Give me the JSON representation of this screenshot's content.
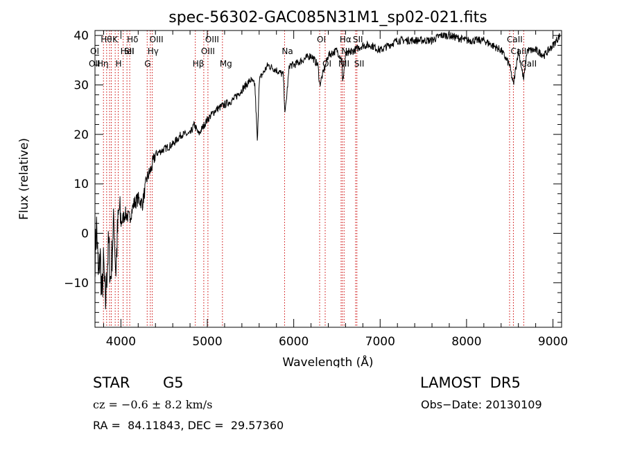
{
  "chart_data": {
    "type": "line",
    "title": "spec-56302-GAC085N31M1_sp02-021.fits",
    "xlabel": "Wavelength (Å)",
    "ylabel": "Flux (relative)",
    "xlim": [
      3700,
      9100
    ],
    "ylim": [
      -19,
      41
    ],
    "xticks": [
      4000,
      5000,
      6000,
      7000,
      8000,
      9000
    ],
    "yticks": [
      -10,
      0,
      10,
      20,
      30,
      40
    ],
    "grid": false,
    "series": [
      {
        "x": [
          3700,
          3720,
          3740,
          3760,
          3780,
          3800,
          3820,
          3840,
          3860,
          3880,
          3900,
          3920,
          3940,
          3960,
          3980,
          4000,
          4050,
          4100,
          4150,
          4200,
          4250,
          4300,
          4350,
          4400,
          4500,
          4600,
          4700,
          4800,
          4850,
          4900,
          5000,
          5100,
          5200,
          5300,
          5400,
          5500,
          5550,
          5580,
          5600,
          5700,
          5800,
          5880,
          5900,
          5950,
          6000,
          6100,
          6200,
          6280,
          6300,
          6400,
          6500,
          6560,
          6563,
          6600,
          6700,
          6800,
          6900,
          7000,
          7200,
          7400,
          7600,
          7700,
          7800,
          8000,
          8200,
          8400,
          8498,
          8542,
          8600,
          8662,
          8700,
          8800,
          8900,
          9000,
          9080
        ],
        "y": [
          -5,
          2,
          -10,
          -4,
          -13,
          -6,
          -15,
          -7,
          -2,
          -10,
          -3,
          3,
          -8,
          0,
          5,
          2,
          4,
          3,
          6,
          7,
          6,
          11,
          13,
          16,
          17,
          18,
          20,
          20,
          22,
          20,
          23,
          25,
          26,
          27,
          29,
          31,
          30,
          18,
          31,
          34,
          33,
          32,
          24,
          34,
          34,
          35,
          36,
          34,
          30,
          36,
          37,
          35,
          30,
          36,
          37,
          38,
          38,
          37,
          39,
          39,
          39,
          40,
          40,
          39,
          39,
          37,
          34,
          30,
          37,
          31,
          37,
          37,
          36,
          38,
          40
        ]
      }
    ],
    "line_markers": [
      {
        "w": 3798,
        "labels": [
          "Hθ"
        ],
        "row": 0
      },
      {
        "w": 3835,
        "labels": [],
        "row": 0
      },
      {
        "w": 3869,
        "labels": [],
        "row": 0
      },
      {
        "w": 3889,
        "labels": [],
        "row": 0
      },
      {
        "w": 3934,
        "labels": [
          "K"
        ],
        "row": 0
      },
      {
        "w": 3969,
        "labels": [
          "H"
        ],
        "row": 2
      },
      {
        "w": 4026,
        "labels": [
          "HeI"
        ],
        "row": 1
      },
      {
        "w": 4070,
        "labels": [
          "SII"
        ],
        "row": 1
      },
      {
        "w": 4102,
        "labels": [
          "Hδ"
        ],
        "row": 0
      },
      {
        "w": 4304,
        "labels": [
          "G"
        ],
        "row": 2
      },
      {
        "w": 4340,
        "labels": [
          "Hγ"
        ],
        "row": 1
      },
      {
        "w": 4363,
        "labels": [
          "OIII"
        ],
        "row": 0
      },
      {
        "w": 4861,
        "labels": [
          "Hβ"
        ],
        "row": 2
      },
      {
        "w": 4959,
        "labels": [
          "OIII"
        ],
        "row": 1
      },
      {
        "w": 5007,
        "labels": [
          "OIII"
        ],
        "row": 0
      },
      {
        "w": 5175,
        "labels": [
          "Mg"
        ],
        "row": 2
      },
      {
        "w": 5894,
        "labels": [
          "Na"
        ],
        "row": 1
      },
      {
        "w": 6300,
        "labels": [
          "OI"
        ],
        "row": 0
      },
      {
        "w": 6364,
        "labels": [
          "OI"
        ],
        "row": 2
      },
      {
        "w": 6548,
        "labels": [
          "NII"
        ],
        "row": 2
      },
      {
        "w": 6563,
        "labels": [
          "Hα"
        ],
        "row": 0
      },
      {
        "w": 6583,
        "labels": [
          "NII"
        ],
        "row": 1
      },
      {
        "w": 6716,
        "labels": [
          "SII"
        ],
        "row": 0
      },
      {
        "w": 6731,
        "labels": [
          "SII"
        ],
        "row": 2
      },
      {
        "w": 8498,
        "labels": [
          "CaII"
        ],
        "row": 0
      },
      {
        "w": 8542,
        "labels": [
          "CaII"
        ],
        "row": 1
      },
      {
        "w": 8662,
        "labels": [
          "CaII"
        ],
        "row": 2
      }
    ],
    "left_stack_labels": [
      {
        "text": "OI",
        "row": 1
      },
      {
        "text": "OII",
        "row": 2
      },
      {
        "text": "Hη",
        "row": 2
      }
    ]
  },
  "info": {
    "object_class": "STAR",
    "subclass": "G5",
    "survey": "LAMOST  DR5",
    "redshift_line": "cz = −0.6 ± 8.2 km/s",
    "obs_date": "Obs−Date: 20130109",
    "coords": "RA =  84.11843, DEC =  29.57360"
  },
  "colors": {
    "spectrum": "#000000",
    "marker": "#cc0000",
    "background": "#ffffff"
  }
}
